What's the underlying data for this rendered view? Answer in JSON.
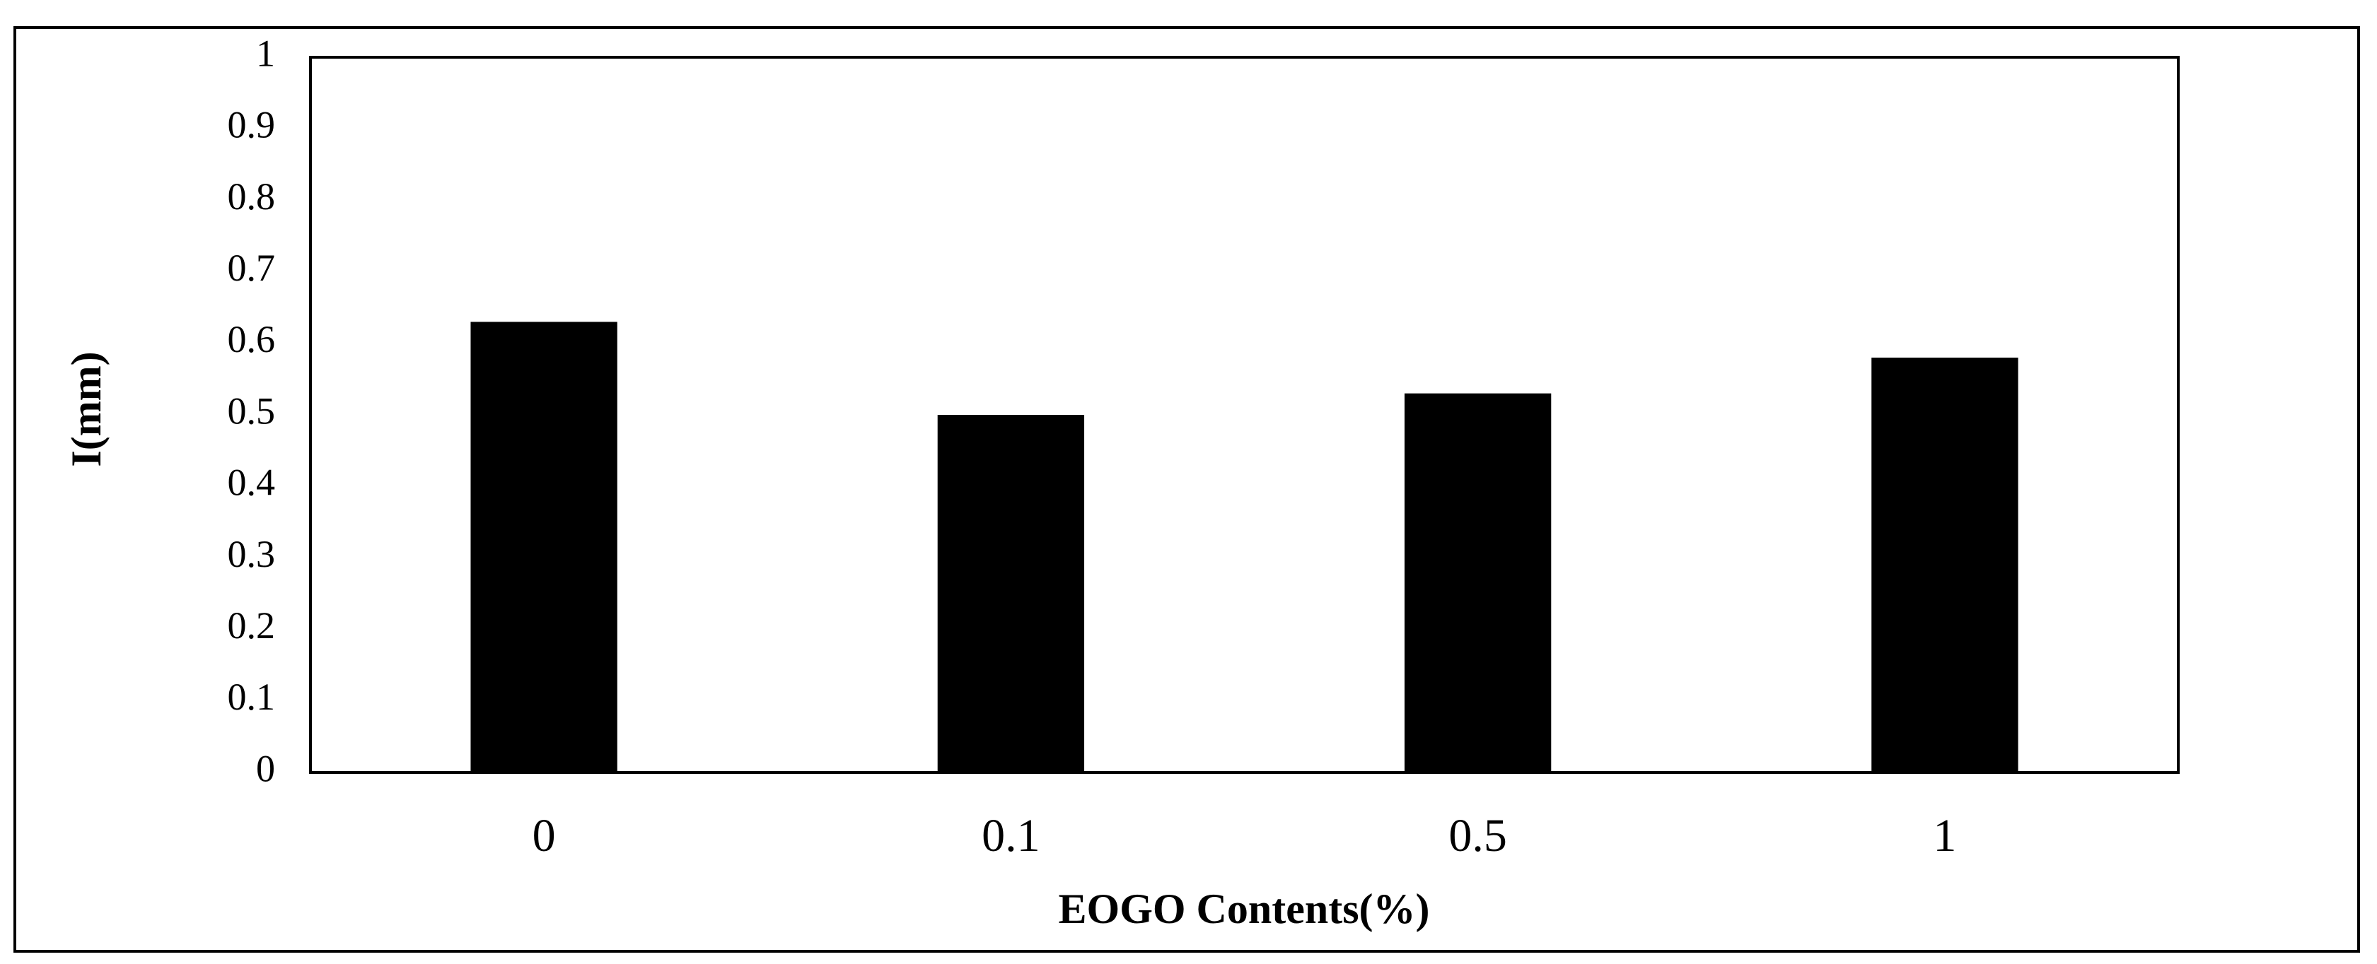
{
  "chart_data": {
    "type": "bar",
    "categories": [
      "0",
      "0.1",
      "0.5",
      "1"
    ],
    "values": [
      0.63,
      0.5,
      0.53,
      0.58
    ],
    "color": "#000000",
    "ylim": [
      0,
      1
    ],
    "yticks": [
      0,
      0.1,
      0.2,
      0.3,
      0.4,
      0.5,
      0.6,
      0.7,
      0.8,
      0.9,
      1
    ],
    "grid": false,
    "xlabel": "EOGO Contents(%)",
    "ylabel": "I(mm)"
  }
}
